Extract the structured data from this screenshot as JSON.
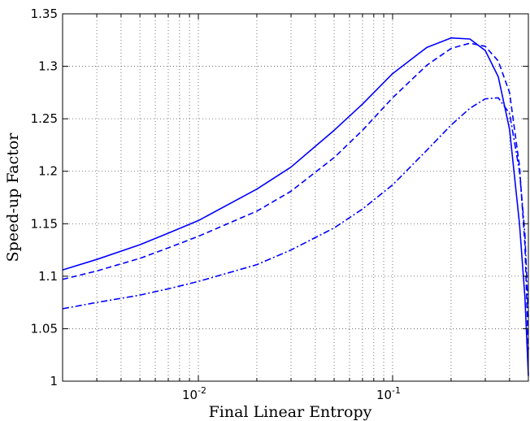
{
  "chart_data": {
    "type": "line",
    "title": "",
    "xlabel": "Final Linear Entropy",
    "ylabel": "Speed-up Factor",
    "xscale": "log",
    "xlim": [
      0.002,
      0.5
    ],
    "ylim": [
      1.0,
      1.35
    ],
    "grid": true,
    "legend": "none",
    "x_ticks": [
      {
        "value": 0.01,
        "base": "10",
        "exp": "-2"
      },
      {
        "value": 0.1,
        "base": "10",
        "exp": "-1"
      }
    ],
    "y_ticks": [
      {
        "value": 1,
        "label": "1"
      },
      {
        "value": 1.05,
        "label": "1.05"
      },
      {
        "value": 1.1,
        "label": "1.1"
      },
      {
        "value": 1.15,
        "label": "1.15"
      },
      {
        "value": 1.2,
        "label": "1.2"
      },
      {
        "value": 1.25,
        "label": "1.25"
      },
      {
        "value": 1.3,
        "label": "1.3"
      },
      {
        "value": 1.35,
        "label": "1.35"
      }
    ],
    "series": [
      {
        "style": "solid",
        "color": "#0000ff",
        "points": [
          [
            0.002,
            1.106
          ],
          [
            0.003,
            1.116
          ],
          [
            0.005,
            1.13
          ],
          [
            0.007,
            1.141
          ],
          [
            0.01,
            1.153
          ],
          [
            0.02,
            1.183
          ],
          [
            0.03,
            1.204
          ],
          [
            0.05,
            1.239
          ],
          [
            0.07,
            1.264
          ],
          [
            0.1,
            1.293
          ],
          [
            0.15,
            1.318
          ],
          [
            0.2,
            1.327
          ],
          [
            0.25,
            1.326
          ],
          [
            0.3,
            1.315
          ],
          [
            0.35,
            1.29
          ],
          [
            0.4,
            1.24
          ],
          [
            0.45,
            1.15
          ],
          [
            0.48,
            1.08
          ],
          [
            0.5,
            1.005
          ]
        ]
      },
      {
        "style": "dashed",
        "color": "#0000ff",
        "points": [
          [
            0.002,
            1.097
          ],
          [
            0.003,
            1.105
          ],
          [
            0.005,
            1.117
          ],
          [
            0.007,
            1.127
          ],
          [
            0.01,
            1.138
          ],
          [
            0.02,
            1.162
          ],
          [
            0.03,
            1.181
          ],
          [
            0.05,
            1.213
          ],
          [
            0.07,
            1.239
          ],
          [
            0.1,
            1.27
          ],
          [
            0.15,
            1.301
          ],
          [
            0.2,
            1.317
          ],
          [
            0.25,
            1.322
          ],
          [
            0.3,
            1.319
          ],
          [
            0.35,
            1.305
          ],
          [
            0.4,
            1.275
          ],
          [
            0.45,
            1.205
          ],
          [
            0.48,
            1.13
          ],
          [
            0.5,
            1.03
          ]
        ]
      },
      {
        "style": "dashdot",
        "color": "#0000ff",
        "points": [
          [
            0.002,
            1.069
          ],
          [
            0.003,
            1.075
          ],
          [
            0.005,
            1.082
          ],
          [
            0.007,
            1.088
          ],
          [
            0.01,
            1.095
          ],
          [
            0.02,
            1.111
          ],
          [
            0.03,
            1.125
          ],
          [
            0.05,
            1.146
          ],
          [
            0.07,
            1.164
          ],
          [
            0.1,
            1.187
          ],
          [
            0.15,
            1.22
          ],
          [
            0.2,
            1.244
          ],
          [
            0.25,
            1.26
          ],
          [
            0.3,
            1.269
          ],
          [
            0.35,
            1.27
          ],
          [
            0.4,
            1.255
          ],
          [
            0.45,
            1.2
          ],
          [
            0.48,
            1.14
          ],
          [
            0.5,
            1.06
          ]
        ]
      }
    ]
  }
}
